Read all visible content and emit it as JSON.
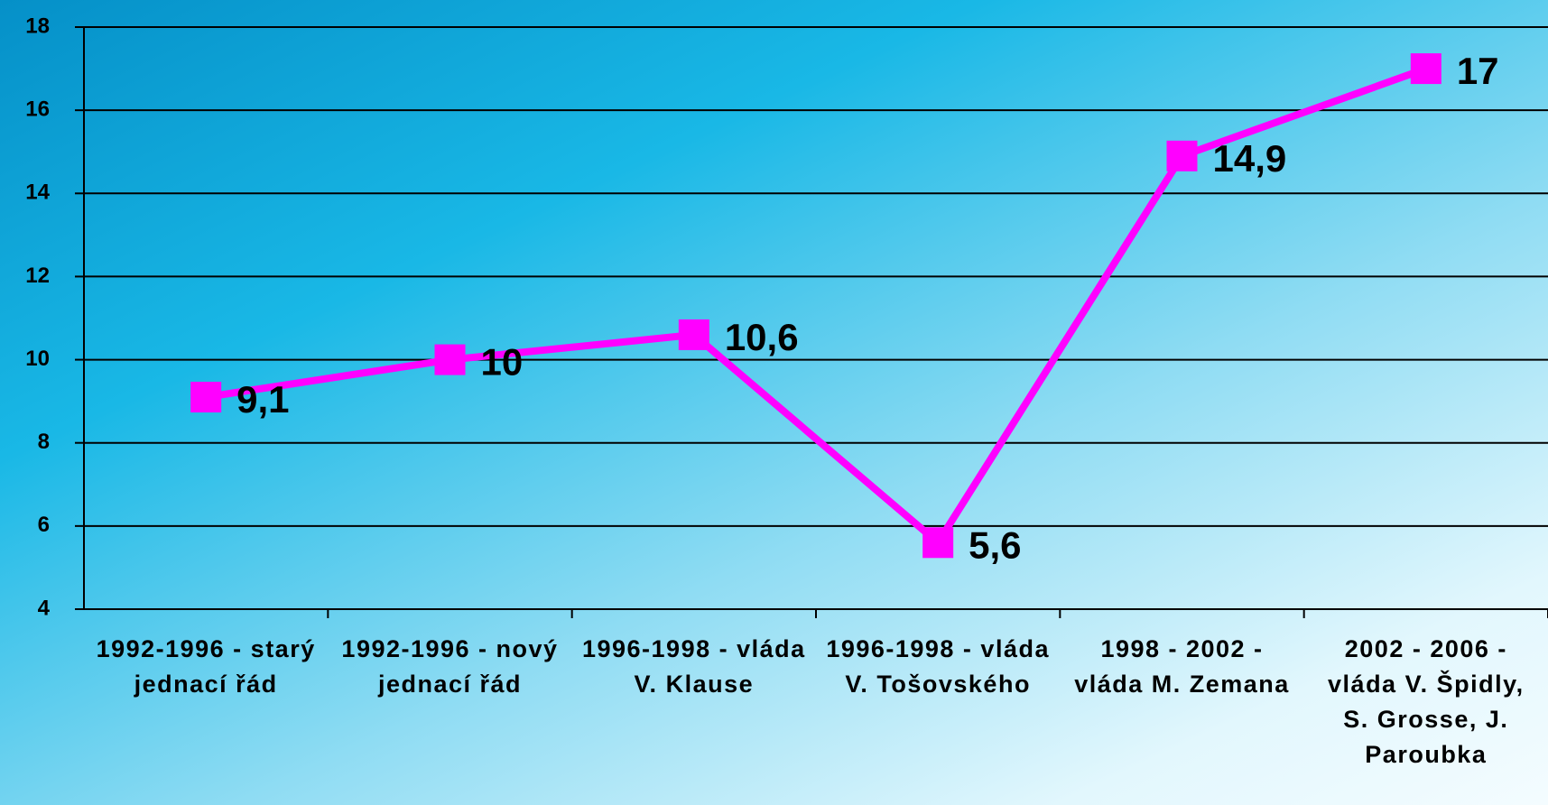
{
  "chart_data": {
    "type": "line",
    "categories": [
      "1992-1996 - starý jednací řád",
      "1992-1996 - nový jednací řád",
      "1996-1998 - vláda V. Klause",
      "1996-1998 - vláda V. Tošovského",
      "1998 - 2002 - vláda M. Zemana",
      "2002 - 2006 - vláda V. Špidly, S. Grosse, J. Paroubka"
    ],
    "values": [
      9.1,
      10,
      10.6,
      5.6,
      14.9,
      17
    ],
    "value_labels": [
      "9,1",
      "10",
      "10,6",
      "5,6",
      "14,9",
      "17"
    ],
    "color": "#ff00ff",
    "ylim": [
      4,
      18
    ],
    "yticks": [
      4,
      6,
      8,
      10,
      12,
      14,
      16,
      18
    ],
    "grid": true
  }
}
